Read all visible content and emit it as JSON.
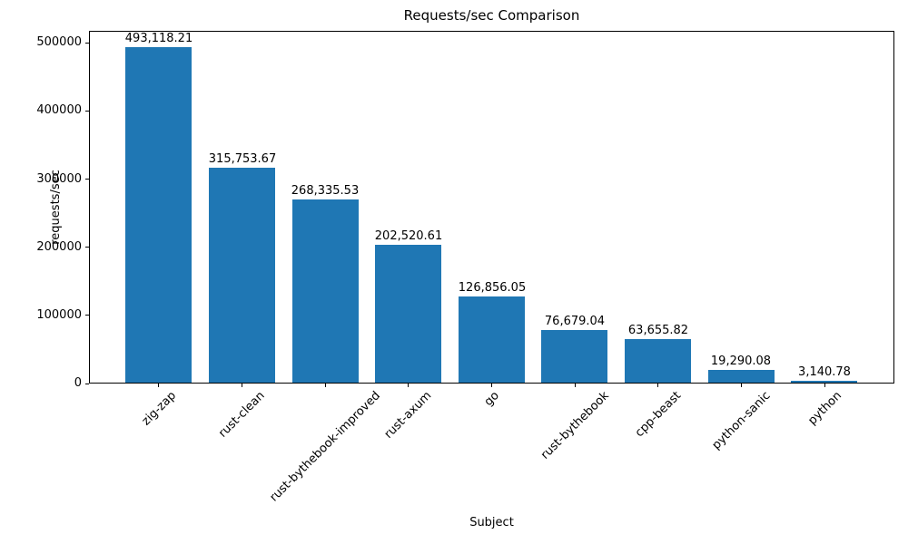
{
  "chart_data": {
    "type": "bar",
    "title": "Requests/sec Comparison",
    "xlabel": "Subject",
    "ylabel": "requests/sec",
    "categories": [
      "zig-zap",
      "rust-clean",
      "rust-bythebook-improved",
      "rust-axum",
      "go",
      "rust-bythebook",
      "cpp-beast",
      "python-sanic",
      "python"
    ],
    "values": [
      493118.21,
      315753.67,
      268335.53,
      202520.61,
      126856.05,
      76679.04,
      63655.82,
      19290.08,
      3140.78
    ],
    "bar_value_labels": [
      "493,118.21",
      "315,753.67",
      "268,335.53",
      "202,520.61",
      "126,856.05",
      "76,679.04",
      "63,655.82",
      "19,290.08",
      "3,140.78"
    ],
    "yticks": [
      0,
      100000,
      200000,
      300000,
      400000,
      500000
    ],
    "ytick_labels": [
      "0",
      "100000",
      "200000",
      "300000",
      "400000",
      "500000"
    ],
    "ylim": [
      0,
      517774
    ],
    "xlim": [
      -0.84,
      8.84
    ],
    "bar_width_units": 0.8,
    "bar_color": "#1f77b4",
    "x_tick_rotation_deg": 45,
    "grid": false,
    "legend": "none"
  }
}
